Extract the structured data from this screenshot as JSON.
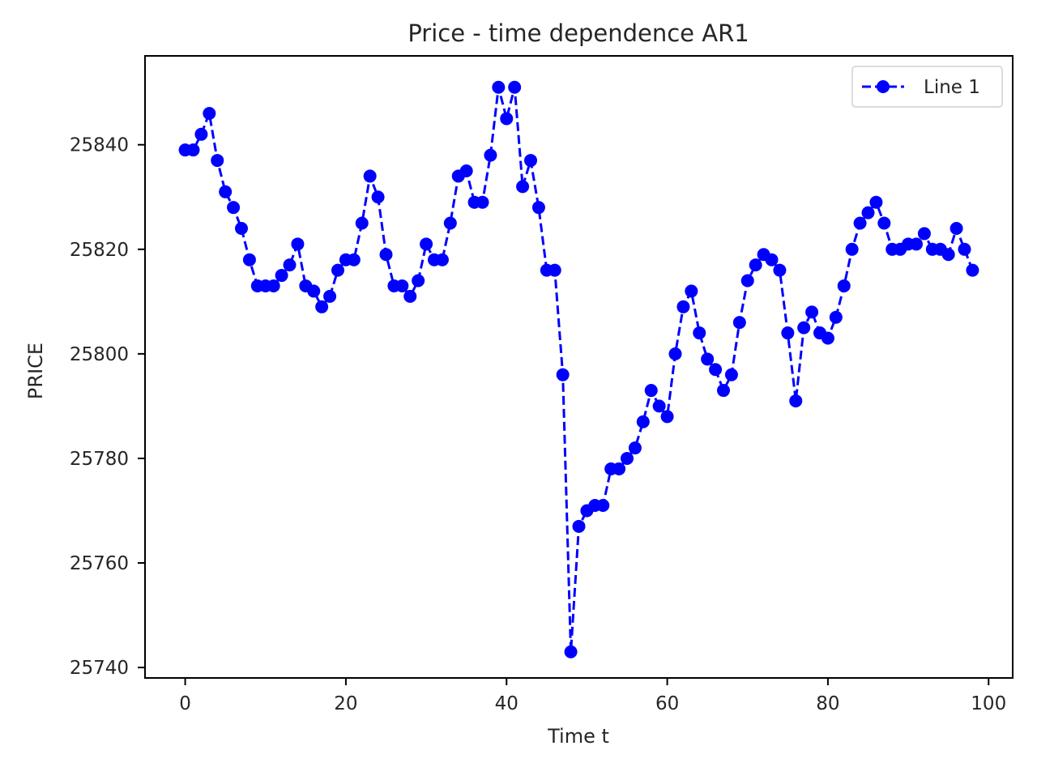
{
  "chart_data": {
    "type": "line",
    "title": "Price - time dependence AR1",
    "xlabel": "Time t",
    "ylabel": "PRICE",
    "xlim": [
      -5,
      103
    ],
    "ylim": [
      25738,
      25857
    ],
    "xticks": [
      0,
      20,
      40,
      60,
      80,
      100
    ],
    "yticks": [
      25740,
      25760,
      25780,
      25800,
      25820,
      25840
    ],
    "xtick_labels": [
      "0",
      "20",
      "40",
      "60",
      "80",
      "100"
    ],
    "ytick_labels": [
      "25740",
      "25760",
      "25780",
      "25800",
      "25820",
      "25840"
    ],
    "grid": false,
    "legend": {
      "position": "top-right",
      "entries": [
        "Line 1"
      ]
    },
    "line_style": "dashed",
    "marker": "circle",
    "color": "#0000ff",
    "series": [
      {
        "name": "Line 1",
        "x": [
          0,
          1,
          2,
          3,
          4,
          5,
          6,
          7,
          8,
          9,
          10,
          11,
          12,
          13,
          14,
          15,
          16,
          17,
          18,
          19,
          20,
          21,
          22,
          23,
          24,
          25,
          26,
          27,
          28,
          29,
          30,
          31,
          32,
          33,
          34,
          35,
          36,
          37,
          38,
          39,
          40,
          41,
          42,
          43,
          44,
          45,
          46,
          47,
          48,
          49,
          50,
          51,
          52,
          53,
          54,
          55,
          56,
          57,
          58,
          59,
          60,
          61,
          62,
          63,
          64,
          65,
          66,
          67,
          68,
          69,
          70,
          71,
          72,
          73,
          74,
          75,
          76,
          77,
          78,
          79,
          80,
          81,
          82,
          83,
          84,
          85,
          86,
          87,
          88,
          89,
          90,
          91,
          92,
          93,
          94,
          95,
          96,
          97,
          98
        ],
        "y": [
          25839,
          25839,
          25842,
          25846,
          25837,
          25831,
          25828,
          25824,
          25818,
          25813,
          25813,
          25813,
          25815,
          25817,
          25821,
          25813,
          25812,
          25809,
          25811,
          25816,
          25818,
          25818,
          25825,
          25834,
          25830,
          25819,
          25813,
          25813,
          25811,
          25814,
          25821,
          25818,
          25818,
          25825,
          25834,
          25835,
          25829,
          25829,
          25838,
          25851,
          25845,
          25851,
          25832,
          25837,
          25828,
          25816,
          25816,
          25796,
          25743,
          25767,
          25770,
          25771,
          25771,
          25778,
          25778,
          25780,
          25782,
          25787,
          25793,
          25790,
          25788,
          25800,
          25809,
          25812,
          25804,
          25799,
          25797,
          25793,
          25796,
          25806,
          25814,
          25817,
          25819,
          25818,
          25816,
          25804,
          25791,
          25805,
          25808,
          25804,
          25803,
          25807,
          25813,
          25820,
          25825,
          25827,
          25829,
          25825,
          25820,
          25820,
          25821,
          25821,
          25823,
          25820,
          25820,
          25819,
          25824,
          25820,
          25816
        ]
      }
    ]
  }
}
